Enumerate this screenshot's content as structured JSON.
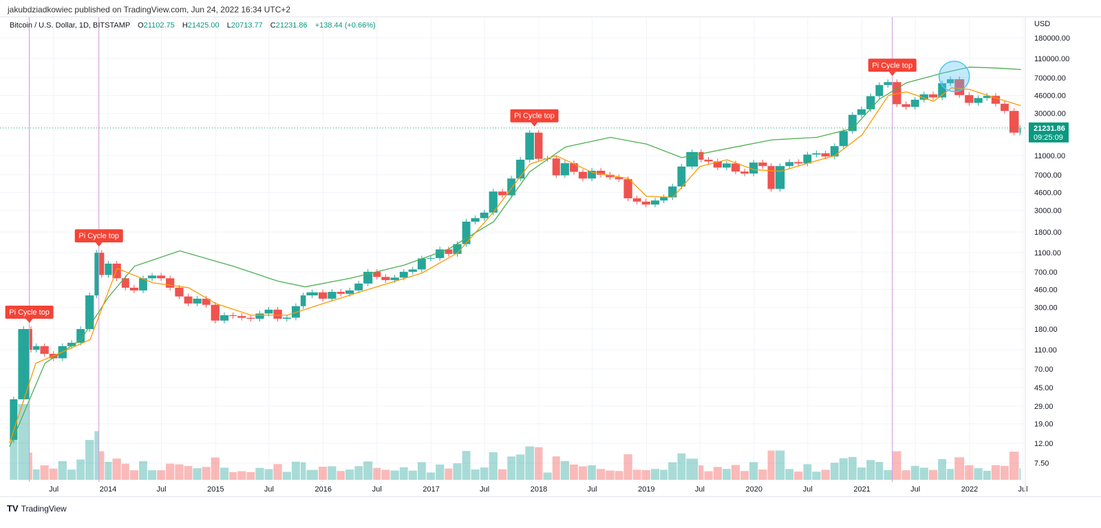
{
  "publisher": "jakubdziadkowiec published on TradingView.com, Jun 24, 2022 16:34 UTC+2",
  "legend": {
    "symbol": "Bitcoin / U.S. Dollar, 1D, BITSTAMP",
    "o_label": "O",
    "o": "21102.75",
    "h_label": "H",
    "h": "21425.00",
    "l_label": "L",
    "l": "20713.77",
    "c_label": "C",
    "c": "21231.86",
    "change": "+138.44 (+0.66%)"
  },
  "logo": "TradingView",
  "colors": {
    "up": "#26a69a",
    "down": "#ef5350",
    "ma_short": "#ff9800",
    "ma_long": "#4caf50",
    "pi_line": "#ce93d8",
    "label_bg": "#f44336",
    "price_tag": "#089981",
    "circle": "#4fc3f7"
  },
  "chart_data": {
    "type": "candlestick",
    "yscale": "log",
    "ylabel": "USD",
    "yticks": [
      "180000.00",
      "110000.00",
      "70000.00",
      "46000.00",
      "30000.00",
      "11000.00",
      "7000.00",
      "4600.00",
      "3000.00",
      "1800.00",
      "1100.00",
      "700.00",
      "460.00",
      "300.00",
      "180.00",
      "110.00",
      "70.00",
      "45.00",
      "29.00",
      "19.00",
      "12.00",
      "7.50"
    ],
    "xticks": [
      {
        "d": "2013-07-01",
        "t": "Jul"
      },
      {
        "d": "2014-01-01",
        "t": "2014"
      },
      {
        "d": "2014-07-01",
        "t": "Jul"
      },
      {
        "d": "2015-01-01",
        "t": "2015"
      },
      {
        "d": "2015-07-01",
        "t": "Jul"
      },
      {
        "d": "2016-01-01",
        "t": "2016"
      },
      {
        "d": "2016-07-01",
        "t": "Jul"
      },
      {
        "d": "2017-01-01",
        "t": "2017"
      },
      {
        "d": "2017-07-01",
        "t": "Jul"
      },
      {
        "d": "2018-01-01",
        "t": "2018"
      },
      {
        "d": "2018-07-01",
        "t": "Jul"
      },
      {
        "d": "2019-01-01",
        "t": "2019"
      },
      {
        "d": "2019-07-01",
        "t": "Jul"
      },
      {
        "d": "2020-01-01",
        "t": "2020"
      },
      {
        "d": "2020-07-01",
        "t": "Jul"
      },
      {
        "d": "2021-01-01",
        "t": "2021"
      },
      {
        "d": "2021-07-01",
        "t": "Jul"
      },
      {
        "d": "2022-01-01",
        "t": "2022"
      },
      {
        "d": "2022-07-01",
        "t": "Jul"
      }
    ],
    "last_price": "21231.86",
    "countdown": "09:25:09",
    "price": [
      [
        "2013-02-01",
        13
      ],
      [
        "2013-03-01",
        34
      ],
      [
        "2013-04-09",
        180
      ],
      [
        "2013-04-20",
        110
      ],
      [
        "2013-05-15",
        120
      ],
      [
        "2013-06-15",
        100
      ],
      [
        "2013-07-15",
        90
      ],
      [
        "2013-08-15",
        120
      ],
      [
        "2013-09-15",
        130
      ],
      [
        "2013-10-15",
        180
      ],
      [
        "2013-11-15",
        400
      ],
      [
        "2013-12-01",
        1100
      ],
      [
        "2013-12-20",
        650
      ],
      [
        "2014-01-15",
        850
      ],
      [
        "2014-02-15",
        600
      ],
      [
        "2014-03-15",
        480
      ],
      [
        "2014-04-15",
        450
      ],
      [
        "2014-05-15",
        600
      ],
      [
        "2014-06-15",
        640
      ],
      [
        "2014-07-15",
        600
      ],
      [
        "2014-08-15",
        480
      ],
      [
        "2014-09-15",
        390
      ],
      [
        "2014-10-15",
        330
      ],
      [
        "2014-11-15",
        370
      ],
      [
        "2014-12-15",
        320
      ],
      [
        "2015-01-15",
        220
      ],
      [
        "2015-02-15",
        250
      ],
      [
        "2015-03-15",
        245
      ],
      [
        "2015-04-15",
        235
      ],
      [
        "2015-05-15",
        230
      ],
      [
        "2015-06-15",
        260
      ],
      [
        "2015-07-15",
        285
      ],
      [
        "2015-08-15",
        230
      ],
      [
        "2015-09-15",
        236
      ],
      [
        "2015-10-15",
        310
      ],
      [
        "2015-11-04",
        400
      ],
      [
        "2015-12-15",
        430
      ],
      [
        "2016-01-15",
        370
      ],
      [
        "2016-02-15",
        435
      ],
      [
        "2016-03-15",
        415
      ],
      [
        "2016-04-15",
        450
      ],
      [
        "2016-05-15",
        530
      ],
      [
        "2016-06-17",
        700
      ],
      [
        "2016-07-15",
        620
      ],
      [
        "2016-08-15",
        575
      ],
      [
        "2016-09-15",
        610
      ],
      [
        "2016-10-15",
        700
      ],
      [
        "2016-11-15",
        740
      ],
      [
        "2016-12-15",
        960
      ],
      [
        "2017-01-15",
        970
      ],
      [
        "2017-02-15",
        1190
      ],
      [
        "2017-03-15",
        1070
      ],
      [
        "2017-04-15",
        1350
      ],
      [
        "2017-05-15",
        2300
      ],
      [
        "2017-06-15",
        2500
      ],
      [
        "2017-07-15",
        2850
      ],
      [
        "2017-08-15",
        4700
      ],
      [
        "2017-09-15",
        4300
      ],
      [
        "2017-10-15",
        6400
      ],
      [
        "2017-11-15",
        10000
      ],
      [
        "2017-12-17",
        19000
      ],
      [
        "2018-01-15",
        10200
      ],
      [
        "2018-02-15",
        10300
      ],
      [
        "2018-03-15",
        6900
      ],
      [
        "2018-04-15",
        9200
      ],
      [
        "2018-05-15",
        7500
      ],
      [
        "2018-06-15",
        6400
      ],
      [
        "2018-07-15",
        7700
      ],
      [
        "2018-08-15",
        7000
      ],
      [
        "2018-09-15",
        6600
      ],
      [
        "2018-10-15",
        6300
      ],
      [
        "2018-11-15",
        4000
      ],
      [
        "2018-12-15",
        3700
      ],
      [
        "2019-01-15",
        3450
      ],
      [
        "2019-02-15",
        3800
      ],
      [
        "2019-03-15",
        4100
      ],
      [
        "2019-04-15",
        5300
      ],
      [
        "2019-05-15",
        8500
      ],
      [
        "2019-06-26",
        12000
      ],
      [
        "2019-07-15",
        10000
      ],
      [
        "2019-08-15",
        9600
      ],
      [
        "2019-09-15",
        8300
      ],
      [
        "2019-10-15",
        9150
      ],
      [
        "2019-11-15",
        7550
      ],
      [
        "2019-12-15",
        7200
      ],
      [
        "2020-01-15",
        9350
      ],
      [
        "2020-02-15",
        8600
      ],
      [
        "2020-03-12",
        5000
      ],
      [
        "2020-04-15",
        8600
      ],
      [
        "2020-05-15",
        9450
      ],
      [
        "2020-06-15",
        9150
      ],
      [
        "2020-07-15",
        11300
      ],
      [
        "2020-08-15",
        11650
      ],
      [
        "2020-09-15",
        10800
      ],
      [
        "2020-10-15",
        13800
      ],
      [
        "2020-11-15",
        19700
      ],
      [
        "2020-12-15",
        29000
      ],
      [
        "2021-01-15",
        33100
      ],
      [
        "2021-02-15",
        45200
      ],
      [
        "2021-03-15",
        58800
      ],
      [
        "2021-04-14",
        63000
      ],
      [
        "2021-05-15",
        37300
      ],
      [
        "2021-06-15",
        35000
      ],
      [
        "2021-07-15",
        41500
      ],
      [
        "2021-08-15",
        47100
      ],
      [
        "2021-09-15",
        43800
      ],
      [
        "2021-10-15",
        61300
      ],
      [
        "2021-11-10",
        67500
      ],
      [
        "2021-12-15",
        46300
      ],
      [
        "2022-01-15",
        38500
      ],
      [
        "2022-02-15",
        43200
      ],
      [
        "2022-03-15",
        45500
      ],
      [
        "2022-04-15",
        37700
      ],
      [
        "2022-05-15",
        31800
      ],
      [
        "2022-06-18",
        19000
      ],
      [
        "2022-06-24",
        21231.86
      ]
    ],
    "ma_short": [
      [
        "2013-02-01",
        12
      ],
      [
        "2013-05-01",
        80
      ],
      [
        "2013-08-01",
        105
      ],
      [
        "2013-11-01",
        140
      ],
      [
        "2014-02-01",
        760
      ],
      [
        "2014-06-01",
        540
      ],
      [
        "2014-10-01",
        480
      ],
      [
        "2015-01-01",
        330
      ],
      [
        "2015-05-01",
        250
      ],
      [
        "2015-09-01",
        250
      ],
      [
        "2016-01-01",
        330
      ],
      [
        "2016-06-01",
        460
      ],
      [
        "2016-12-01",
        680
      ],
      [
        "2017-04-01",
        1100
      ],
      [
        "2017-08-01",
        2900
      ],
      [
        "2017-12-01",
        9000
      ],
      [
        "2018-03-01",
        11000
      ],
      [
        "2018-07-01",
        7400
      ],
      [
        "2018-11-01",
        6400
      ],
      [
        "2019-01-01",
        4200
      ],
      [
        "2019-04-01",
        4100
      ],
      [
        "2019-07-01",
        8500
      ],
      [
        "2019-10-01",
        10000
      ],
      [
        "2020-01-01",
        7900
      ],
      [
        "2020-04-01",
        7600
      ],
      [
        "2020-07-01",
        9200
      ],
      [
        "2020-10-01",
        11000
      ],
      [
        "2021-01-01",
        18000
      ],
      [
        "2021-04-01",
        46000
      ],
      [
        "2021-06-01",
        50000
      ],
      [
        "2021-09-01",
        40000
      ],
      [
        "2021-11-01",
        55000
      ],
      [
        "2022-01-01",
        53000
      ],
      [
        "2022-04-01",
        43000
      ],
      [
        "2022-06-24",
        36000
      ]
    ],
    "ma_long": [
      [
        "2013-02-01",
        11
      ],
      [
        "2013-06-01",
        80
      ],
      [
        "2013-10-01",
        140
      ],
      [
        "2014-01-01",
        380
      ],
      [
        "2014-04-01",
        800
      ],
      [
        "2014-09-01",
        1150
      ],
      [
        "2015-03-01",
        800
      ],
      [
        "2015-08-01",
        560
      ],
      [
        "2015-11-01",
        490
      ],
      [
        "2016-04-01",
        600
      ],
      [
        "2016-10-01",
        820
      ],
      [
        "2017-03-01",
        1200
      ],
      [
        "2017-08-01",
        2300
      ],
      [
        "2017-12-01",
        7500
      ],
      [
        "2018-04-01",
        13500
      ],
      [
        "2018-09-01",
        17000
      ],
      [
        "2019-01-01",
        14500
      ],
      [
        "2019-05-01",
        10500
      ],
      [
        "2019-10-01",
        13000
      ],
      [
        "2020-03-01",
        16000
      ],
      [
        "2020-08-01",
        17000
      ],
      [
        "2020-12-01",
        21000
      ],
      [
        "2021-03-01",
        42000
      ],
      [
        "2021-06-01",
        62000
      ],
      [
        "2021-10-01",
        78000
      ],
      [
        "2022-01-01",
        90000
      ],
      [
        "2022-04-01",
        88000
      ],
      [
        "2022-06-24",
        85000
      ]
    ],
    "annotations": [
      {
        "text": "Pi Cycle top",
        "d": "2013-04-09",
        "p": 180,
        "vline": true
      },
      {
        "text": "Pi Cycle top",
        "d": "2013-12-01",
        "p": 1100,
        "vline": true
      },
      {
        "text": "Pi Cycle top",
        "d": "2017-12-17",
        "p": 19000,
        "vline": false
      },
      {
        "text": "Pi Cycle top",
        "d": "2021-04-14",
        "p": 63000,
        "vline": true
      }
    ],
    "highlight_circle": {
      "d": "2021-11-10",
      "p": 67500
    }
  }
}
